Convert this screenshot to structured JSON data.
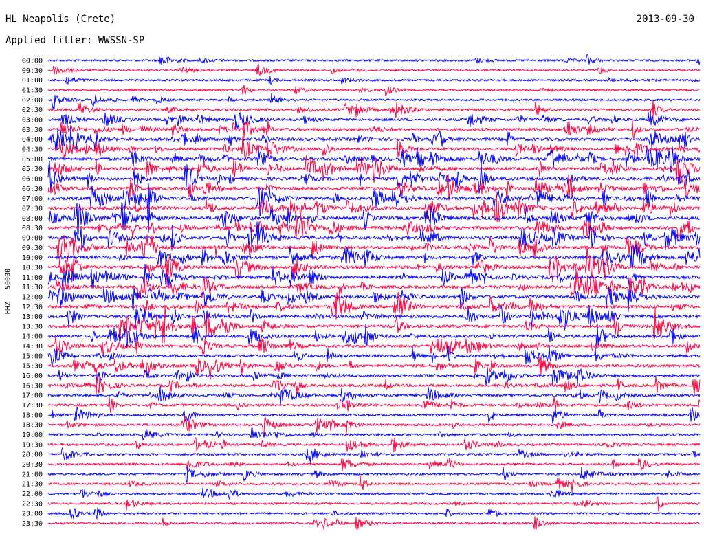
{
  "header": {
    "station": "HL Neapolis (Crete)",
    "date": "2013-09-30",
    "filter": "Applied filter: WWSSN-SP"
  },
  "chart_data": {
    "type": "line",
    "title": "HL Neapolis (Crete)",
    "subtitle": "Applied filter: WWSSN-SP",
    "date": "2013-09-30",
    "ylabel": "HHZ - 50000",
    "xlabel": "",
    "row_interval_minutes": 30,
    "row_colors": [
      "#0000ff",
      "#ff0040"
    ],
    "grid": false,
    "categories": [
      "00:00",
      "00:30",
      "01:00",
      "01:30",
      "02:00",
      "02:30",
      "03:00",
      "03:30",
      "04:00",
      "04:30",
      "05:00",
      "05:30",
      "06:00",
      "06:30",
      "07:00",
      "07:30",
      "08:00",
      "08:30",
      "09:00",
      "09:30",
      "10:00",
      "10:30",
      "11:00",
      "11:30",
      "12:00",
      "12:30",
      "13:00",
      "13:30",
      "14:00",
      "14:30",
      "15:00",
      "15:30",
      "16:00",
      "16:30",
      "17:00",
      "17:30",
      "18:00",
      "18:30",
      "19:00",
      "19:30",
      "20:00",
      "20:30",
      "21:00",
      "21:30",
      "22:00",
      "22:30",
      "23:00",
      "23:30"
    ],
    "activity": [
      0.15,
      0.15,
      0.15,
      0.1,
      0.2,
      0.3,
      0.4,
      0.5,
      0.6,
      0.6,
      0.7,
      0.7,
      0.7,
      0.7,
      0.7,
      0.7,
      0.7,
      0.7,
      0.7,
      0.7,
      0.65,
      0.65,
      0.65,
      0.65,
      0.6,
      0.6,
      0.6,
      0.6,
      0.6,
      0.55,
      0.5,
      0.5,
      0.45,
      0.45,
      0.4,
      0.35,
      0.3,
      0.3,
      0.3,
      0.3,
      0.25,
      0.2,
      0.2,
      0.2,
      0.15,
      0.15,
      0.15,
      0.15
    ]
  }
}
